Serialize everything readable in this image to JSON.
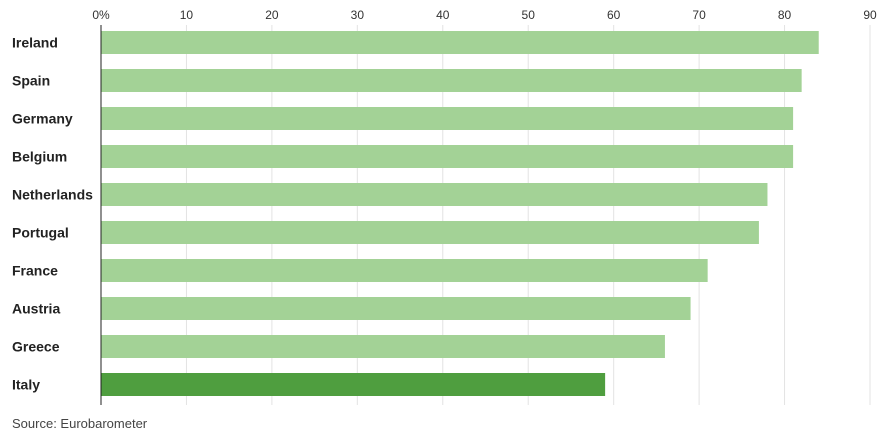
{
  "chart_data": {
    "type": "bar",
    "orientation": "horizontal",
    "categories": [
      "Ireland",
      "Spain",
      "Germany",
      "Belgium",
      "Netherlands",
      "Portugal",
      "France",
      "Austria",
      "Greece",
      "Italy"
    ],
    "values": [
      84,
      82,
      81,
      81,
      78,
      77,
      71,
      69,
      66,
      59
    ],
    "xlim": [
      0,
      90
    ],
    "x_ticks": [
      "0%",
      "10",
      "20",
      "30",
      "40",
      "50",
      "60",
      "70",
      "80",
      "90"
    ],
    "x_tick_values": [
      0,
      10,
      20,
      30,
      40,
      50,
      60,
      70,
      80,
      90
    ],
    "x_axis_position": "top",
    "grid": true,
    "highlight_category": "Italy",
    "colors": {
      "bar": "#a3d296",
      "highlight": "#4f9e3f"
    }
  },
  "source": "Source: Eurobarometer"
}
